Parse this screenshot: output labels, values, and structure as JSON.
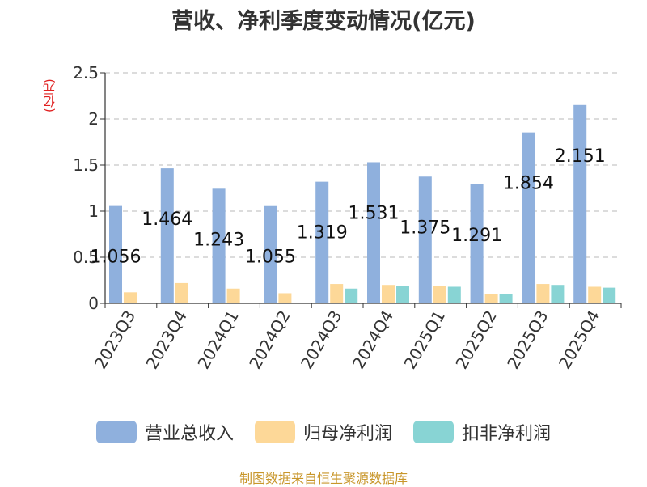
{
  "chart_data": {
    "type": "bar",
    "title": "营收、净利季度变动情况(亿元)",
    "ylabel": "(亿元)",
    "xlabel": "",
    "ylim": [
      0,
      2.5
    ],
    "yticks": [
      "0",
      "0.5",
      "1",
      "1.5",
      "2",
      "2.5"
    ],
    "grid": true,
    "legend_position": "bottom",
    "categories": [
      "2023Q3",
      "2023Q4",
      "2024Q1",
      "2024Q2",
      "2024Q3",
      "2024Q4",
      "2025Q1",
      "2025Q2",
      "2025Q3",
      "2025Q4"
    ],
    "series": [
      {
        "name": "营业总收入",
        "color": "#8fb0dd",
        "values": [
          1.056,
          1.464,
          1.243,
          1.055,
          1.319,
          1.531,
          1.375,
          1.291,
          1.854,
          2.151
        ],
        "labels": [
          "1.056",
          "1.464",
          "1.243",
          "1.055",
          "1.319",
          "1.531",
          "1.375",
          "1.291",
          "1.854",
          "2.151"
        ]
      },
      {
        "name": "归母净利润",
        "color": "#fdd898",
        "values": [
          0.12,
          0.22,
          0.16,
          0.11,
          0.21,
          0.2,
          0.19,
          0.1,
          0.21,
          0.18
        ]
      },
      {
        "name": "扣非净利润",
        "color": "#88d4d4",
        "values": [
          null,
          null,
          null,
          null,
          0.16,
          0.19,
          0.18,
          0.1,
          0.2,
          0.17
        ]
      }
    ]
  },
  "source_note": "制图数据来自恒生聚源数据库"
}
